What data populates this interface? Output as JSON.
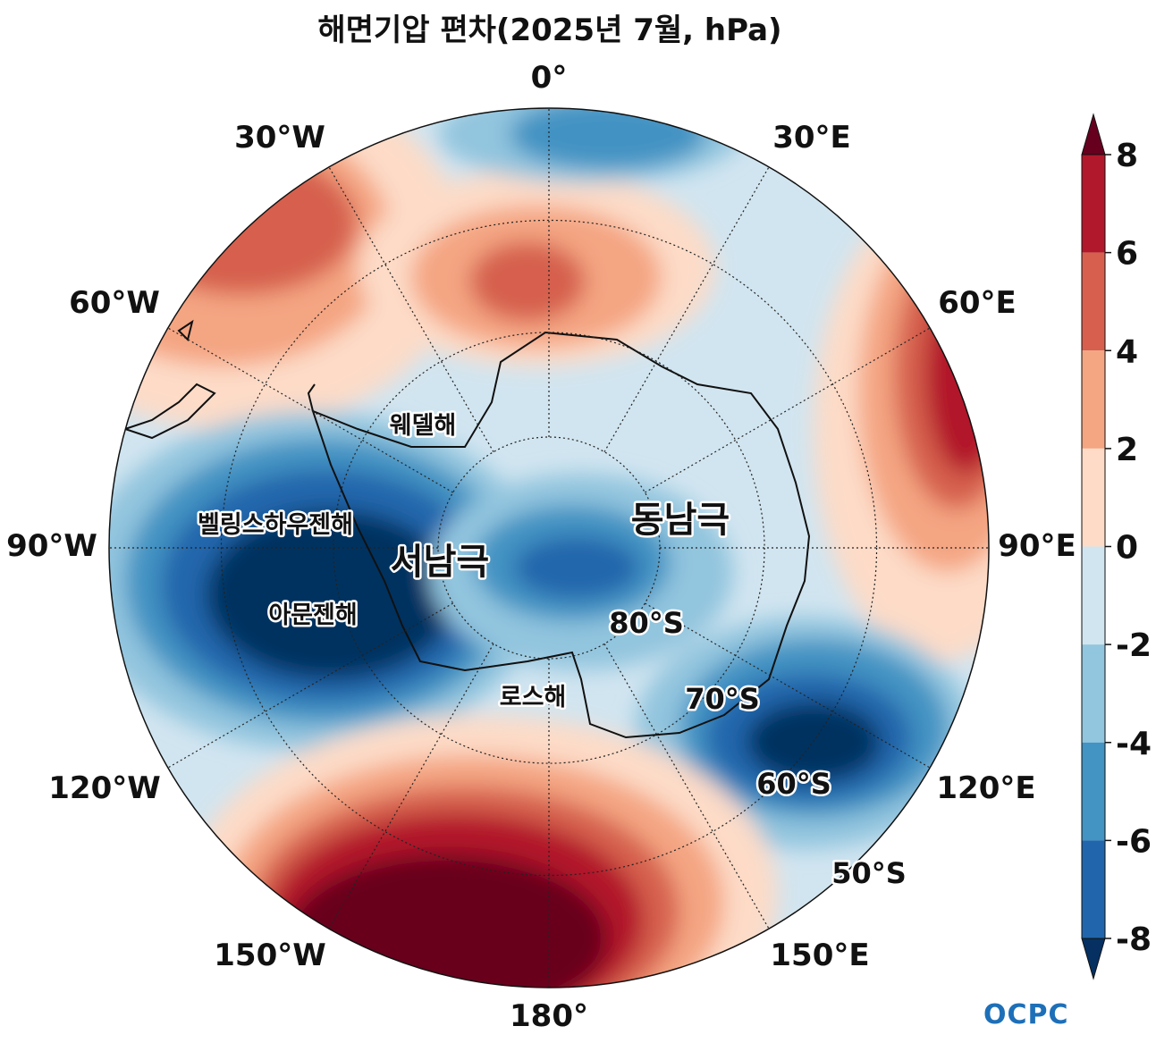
{
  "title": "해면기압 편차(2025년 7월, hPa)",
  "longitude_labels": [
    "0°",
    "30°E",
    "60°E",
    "90°E",
    "120°E",
    "150°E",
    "180°",
    "150°W",
    "120°W",
    "90°W",
    "60°W",
    "30°W"
  ],
  "latitude_labels": [
    "80°S",
    "70°S",
    "60°S",
    "50°S"
  ],
  "region_labels": {
    "weddell": "웨델해",
    "bellingshausen": "벨링스하우젠해",
    "amundsen": "아문젠해",
    "ross": "로스해",
    "west_antarctica": "서남극",
    "east_antarctica": "동남극"
  },
  "colorbar": {
    "ticks": [
      "8",
      "6",
      "4",
      "2",
      "0",
      "-2",
      "-4",
      "-6",
      "-8"
    ],
    "colors": [
      "#67001f",
      "#b2182b",
      "#d6604d",
      "#f4a582",
      "#fddbc7",
      "#d1e5f0",
      "#92c5de",
      "#4393c3",
      "#2166ac",
      "#053061"
    ]
  },
  "logo": "OCPC",
  "colors": {
    "ocean_background": "#deebf7",
    "outline": "#111111"
  }
}
